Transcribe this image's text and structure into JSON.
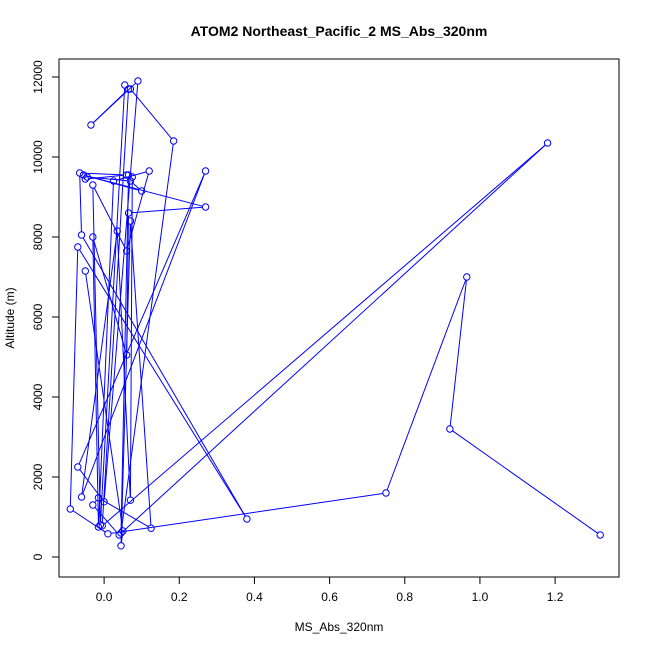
{
  "chart_data": {
    "type": "line",
    "title": "ATOM2 Northeast_Pacific_2 MS_Abs_320nm",
    "xlabel": "MS_Abs_320nm",
    "ylabel": "Altitude (m)",
    "xlim": [
      -0.12,
      1.37
    ],
    "ylim": [
      -500,
      12450
    ],
    "xticks": [
      0.0,
      0.2,
      0.4,
      0.6,
      0.8,
      1.0,
      1.2
    ],
    "xtick_labels": [
      "0.0",
      "0.2",
      "0.4",
      "0.6",
      "0.8",
      "1.0",
      "1.2"
    ],
    "yticks": [
      0,
      2000,
      4000,
      6000,
      8000,
      10000,
      12000
    ],
    "ytick_labels": [
      "0",
      "2000",
      "4000",
      "6000",
      "8000",
      "10000",
      "12000"
    ],
    "marker": "open-circle",
    "grid": false,
    "series": [
      {
        "color": "#0000ff",
        "x": [
          1.32,
          0.92,
          0.965,
          0.75,
          0.01,
          -0.09,
          -0.07,
          0.38,
          -0.06,
          -0.065,
          0.06,
          -0.05,
          -0.045,
          0.07,
          0.1,
          -0.055,
          0.27,
          0.065,
          0.06,
          -0.03,
          -0.015,
          0.025,
          0.12,
          0.06,
          -0.03,
          -0.01,
          0.055,
          0.07,
          0.185,
          0.045,
          0.065,
          0.075,
          0.07,
          0.035,
          -0.06,
          0.27,
          -0.07,
          0.0,
          0.09,
          -0.035,
          0.065,
          -0.005,
          1.18,
          0.04,
          -0.03,
          -0.015,
          0.125,
          0.07,
          0.045,
          0.05,
          -0.05
        ],
        "y": [
          550,
          3200,
          7000,
          1600,
          580,
          1200,
          7750,
          950,
          8050,
          9600,
          9550,
          9450,
          9500,
          9400,
          9150,
          9550,
          8750,
          8600,
          5050,
          8000,
          750,
          9400,
          9650,
          7650,
          9300,
          800,
          11800,
          11700,
          10400,
          600,
          9550,
          9500,
          1420,
          8150,
          1500,
          9650,
          2250,
          1380,
          11900,
          10800,
          11700,
          780,
          10350,
          550,
          1300,
          1480,
          720,
          8400,
          280,
          650,
          7150
        ]
      }
    ]
  }
}
